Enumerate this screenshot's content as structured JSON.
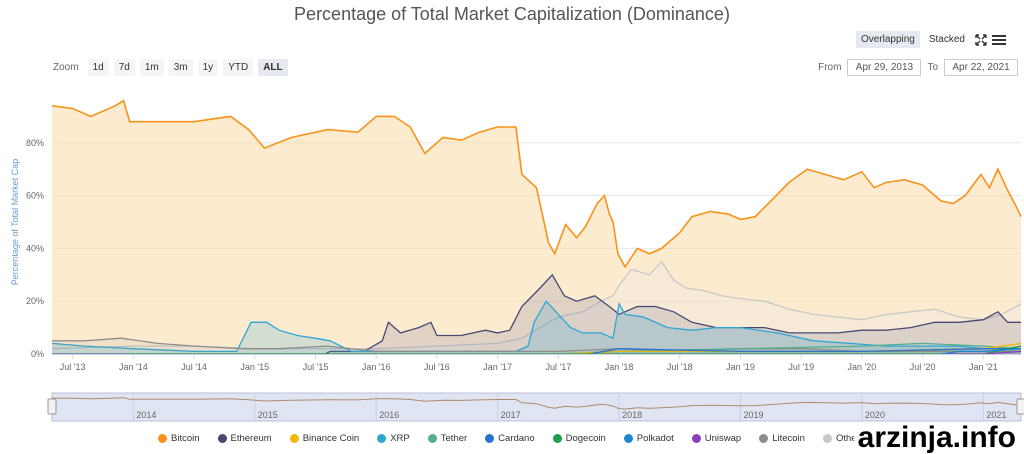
{
  "header": {
    "title": "Percentage of Total Market Capitalization (Dominance)"
  },
  "toolbar": {
    "overlapping_label": "Overlapping",
    "stacked_label": "Stacked",
    "active_view": "Overlapping",
    "fullscreen_icon": "expand-icon",
    "menu_icon": "hamburger-menu-icon"
  },
  "zoom": {
    "label": "Zoom",
    "options": [
      "1d",
      "7d",
      "1m",
      "3m",
      "1y",
      "YTD",
      "ALL"
    ],
    "active": "ALL"
  },
  "range": {
    "from_label": "From",
    "from_value": "Apr 29, 2013",
    "to_label": "To",
    "to_value": "Apr 22, 2021"
  },
  "watermark": "arzinja.info",
  "colors": {
    "plot_background": "#ffffff",
    "navigator_fill": "#dfe5f2"
  },
  "chart_data": {
    "type": "area",
    "title": "Percentage of Total Market Capitalization (Dominance)",
    "ylabel": "Percentage of Total Market Cap",
    "ylim": [
      0,
      100
    ],
    "yticks": [
      0,
      20,
      40,
      60,
      80
    ],
    "ytick_labels": [
      "0%",
      "20%",
      "40%",
      "60%",
      "80%"
    ],
    "x_start": 2013.33,
    "x_end": 2021.31,
    "xticks": [
      {
        "x": 2013.5,
        "label": "Jul '13"
      },
      {
        "x": 2014.0,
        "label": "Jan '14"
      },
      {
        "x": 2014.5,
        "label": "Jul '14"
      },
      {
        "x": 2015.0,
        "label": "Jan '15"
      },
      {
        "x": 2015.5,
        "label": "Jul '15"
      },
      {
        "x": 2016.0,
        "label": "Jan '16"
      },
      {
        "x": 2016.5,
        "label": "Jul '16"
      },
      {
        "x": 2017.0,
        "label": "Jan '17"
      },
      {
        "x": 2017.5,
        "label": "Jul '17"
      },
      {
        "x": 2018.0,
        "label": "Jan '18"
      },
      {
        "x": 2018.5,
        "label": "Jul '18"
      },
      {
        "x": 2019.0,
        "label": "Jan '19"
      },
      {
        "x": 2019.5,
        "label": "Jul '19"
      },
      {
        "x": 2020.0,
        "label": "Jan '20"
      },
      {
        "x": 2020.5,
        "label": "Jul '20"
      },
      {
        "x": 2021.0,
        "label": "Jan '21"
      }
    ],
    "navigator_years": [
      {
        "x": 2014.0,
        "label": "2014"
      },
      {
        "x": 2015.0,
        "label": "2015"
      },
      {
        "x": 2016.0,
        "label": "2016"
      },
      {
        "x": 2017.0,
        "label": "2017"
      },
      {
        "x": 2018.0,
        "label": "2018"
      },
      {
        "x": 2019.0,
        "label": "2019"
      },
      {
        "x": 2020.0,
        "label": "2020"
      },
      {
        "x": 2021.0,
        "label": "2021"
      }
    ],
    "grid": true,
    "legend_position": "bottom",
    "series": [
      {
        "name": "Bitcoin",
        "color": "#f7931a",
        "fill": "rgba(252,218,170,0.55)",
        "points": [
          [
            2013.33,
            94
          ],
          [
            2013.5,
            93
          ],
          [
            2013.65,
            90
          ],
          [
            2013.85,
            94
          ],
          [
            2013.92,
            96
          ],
          [
            2013.97,
            88
          ],
          [
            2014.2,
            88
          ],
          [
            2014.5,
            88
          ],
          [
            2014.8,
            90
          ],
          [
            2014.95,
            85
          ],
          [
            2015.08,
            78
          ],
          [
            2015.3,
            82
          ],
          [
            2015.6,
            85
          ],
          [
            2015.85,
            84
          ],
          [
            2016.0,
            90
          ],
          [
            2016.15,
            90
          ],
          [
            2016.28,
            86
          ],
          [
            2016.4,
            76
          ],
          [
            2016.55,
            82
          ],
          [
            2016.7,
            81
          ],
          [
            2016.85,
            84
          ],
          [
            2017.0,
            86
          ],
          [
            2017.15,
            86
          ],
          [
            2017.2,
            68
          ],
          [
            2017.32,
            63
          ],
          [
            2017.42,
            42
          ],
          [
            2017.47,
            38
          ],
          [
            2017.56,
            49
          ],
          [
            2017.65,
            44
          ],
          [
            2017.72,
            48
          ],
          [
            2017.82,
            57
          ],
          [
            2017.88,
            60
          ],
          [
            2017.92,
            53
          ],
          [
            2017.95,
            50
          ],
          [
            2017.99,
            38
          ],
          [
            2018.05,
            33
          ],
          [
            2018.15,
            40
          ],
          [
            2018.25,
            38
          ],
          [
            2018.35,
            40
          ],
          [
            2018.5,
            46
          ],
          [
            2018.6,
            52
          ],
          [
            2018.75,
            54
          ],
          [
            2018.9,
            53
          ],
          [
            2019.0,
            51
          ],
          [
            2019.12,
            52
          ],
          [
            2019.25,
            58
          ],
          [
            2019.4,
            65
          ],
          [
            2019.55,
            70
          ],
          [
            2019.7,
            68
          ],
          [
            2019.85,
            66
          ],
          [
            2020.0,
            69
          ],
          [
            2020.1,
            63
          ],
          [
            2020.2,
            65
          ],
          [
            2020.35,
            66
          ],
          [
            2020.5,
            64
          ],
          [
            2020.65,
            58
          ],
          [
            2020.75,
            57
          ],
          [
            2020.85,
            60
          ],
          [
            2020.98,
            68
          ],
          [
            2021.05,
            63
          ],
          [
            2021.12,
            70
          ],
          [
            2021.2,
            62
          ],
          [
            2021.27,
            56
          ],
          [
            2021.31,
            52
          ]
        ]
      },
      {
        "name": "Ethereum",
        "color": "#454a75",
        "fill": "rgba(108,112,150,0.20)",
        "points": [
          [
            2013.33,
            0
          ],
          [
            2015.58,
            0
          ],
          [
            2015.62,
            1
          ],
          [
            2015.9,
            1
          ],
          [
            2016.05,
            5
          ],
          [
            2016.1,
            12
          ],
          [
            2016.2,
            8
          ],
          [
            2016.35,
            10
          ],
          [
            2016.45,
            12
          ],
          [
            2016.5,
            7
          ],
          [
            2016.7,
            7
          ],
          [
            2016.9,
            9
          ],
          [
            2017.0,
            8
          ],
          [
            2017.1,
            9
          ],
          [
            2017.2,
            18
          ],
          [
            2017.35,
            25
          ],
          [
            2017.45,
            30
          ],
          [
            2017.55,
            22
          ],
          [
            2017.65,
            20
          ],
          [
            2017.8,
            22
          ],
          [
            2017.92,
            18
          ],
          [
            2018.0,
            15
          ],
          [
            2018.15,
            18
          ],
          [
            2018.3,
            18
          ],
          [
            2018.45,
            16
          ],
          [
            2018.6,
            12
          ],
          [
            2018.8,
            10
          ],
          [
            2019.0,
            10
          ],
          [
            2019.2,
            10
          ],
          [
            2019.4,
            8
          ],
          [
            2019.6,
            8
          ],
          [
            2019.8,
            8
          ],
          [
            2020.0,
            9
          ],
          [
            2020.2,
            9
          ],
          [
            2020.4,
            10
          ],
          [
            2020.6,
            12
          ],
          [
            2020.8,
            12
          ],
          [
            2021.0,
            13
          ],
          [
            2021.12,
            16
          ],
          [
            2021.2,
            12
          ],
          [
            2021.31,
            12
          ]
        ]
      },
      {
        "name": "XRP",
        "color": "#2ea6d3",
        "fill": "rgba(46,166,211,0.20)",
        "points": [
          [
            2013.33,
            4
          ],
          [
            2013.6,
            3
          ],
          [
            2014.0,
            2
          ],
          [
            2014.5,
            1
          ],
          [
            2014.85,
            1
          ],
          [
            2014.97,
            12
          ],
          [
            2015.1,
            12
          ],
          [
            2015.2,
            9
          ],
          [
            2015.35,
            7
          ],
          [
            2015.5,
            6
          ],
          [
            2015.62,
            5
          ],
          [
            2015.8,
            1
          ],
          [
            2016.0,
            1
          ],
          [
            2016.5,
            1
          ],
          [
            2017.0,
            1
          ],
          [
            2017.15,
            1
          ],
          [
            2017.25,
            3
          ],
          [
            2017.3,
            12
          ],
          [
            2017.4,
            20
          ],
          [
            2017.5,
            15
          ],
          [
            2017.6,
            10
          ],
          [
            2017.7,
            8
          ],
          [
            2017.85,
            8
          ],
          [
            2017.95,
            6
          ],
          [
            2018.0,
            19
          ],
          [
            2018.05,
            15
          ],
          [
            2018.2,
            14
          ],
          [
            2018.4,
            10
          ],
          [
            2018.6,
            9
          ],
          [
            2018.8,
            10
          ],
          [
            2019.0,
            10
          ],
          [
            2019.3,
            8
          ],
          [
            2019.6,
            5
          ],
          [
            2019.9,
            4
          ],
          [
            2020.2,
            3
          ],
          [
            2020.5,
            3
          ],
          [
            2020.8,
            3
          ],
          [
            2021.0,
            2
          ],
          [
            2021.2,
            2
          ],
          [
            2021.31,
            2
          ]
        ]
      },
      {
        "name": "Litecoin",
        "color": "#8d8d8d",
        "fill": "rgba(141,141,141,0.10)",
        "points": [
          [
            2013.33,
            5
          ],
          [
            2013.6,
            5
          ],
          [
            2013.9,
            6
          ],
          [
            2014.2,
            4
          ],
          [
            2014.5,
            3
          ],
          [
            2014.9,
            2
          ],
          [
            2015.2,
            2
          ],
          [
            2015.6,
            3
          ],
          [
            2016.0,
            1
          ],
          [
            2016.5,
            1
          ],
          [
            2017.0,
            1
          ],
          [
            2017.5,
            1
          ],
          [
            2018.0,
            2
          ],
          [
            2018.5,
            1
          ],
          [
            2019.0,
            2
          ],
          [
            2019.5,
            2
          ],
          [
            2020.0,
            1
          ],
          [
            2020.5,
            1
          ],
          [
            2021.0,
            1
          ],
          [
            2021.31,
            1
          ]
        ]
      },
      {
        "name": "Others",
        "color": "#c8c8c8",
        "fill": "rgba(230,230,230,0.25)",
        "points": [
          [
            2013.33,
            2
          ],
          [
            2014.0,
            3
          ],
          [
            2014.5,
            3
          ],
          [
            2015.0,
            2
          ],
          [
            2015.5,
            2
          ],
          [
            2016.0,
            2
          ],
          [
            2016.5,
            3
          ],
          [
            2017.0,
            4
          ],
          [
            2017.2,
            6
          ],
          [
            2017.35,
            10
          ],
          [
            2017.5,
            14
          ],
          [
            2017.7,
            16
          ],
          [
            2017.85,
            20
          ],
          [
            2017.95,
            22
          ],
          [
            2018.0,
            26
          ],
          [
            2018.1,
            32
          ],
          [
            2018.25,
            30
          ],
          [
            2018.35,
            35
          ],
          [
            2018.45,
            28
          ],
          [
            2018.55,
            25
          ],
          [
            2018.7,
            24
          ],
          [
            2018.85,
            22
          ],
          [
            2019.0,
            21
          ],
          [
            2019.2,
            20
          ],
          [
            2019.4,
            17
          ],
          [
            2019.6,
            15
          ],
          [
            2019.8,
            14
          ],
          [
            2020.0,
            13
          ],
          [
            2020.2,
            15
          ],
          [
            2020.4,
            16
          ],
          [
            2020.6,
            17
          ],
          [
            2020.8,
            14
          ],
          [
            2021.0,
            13
          ],
          [
            2021.15,
            15
          ],
          [
            2021.31,
            19
          ]
        ]
      },
      {
        "name": "Binance Coin",
        "color": "#f0b90b",
        "fill": "rgba(240,185,11,0.10)",
        "points": [
          [
            2017.55,
            0
          ],
          [
            2018.0,
            1
          ],
          [
            2019.0,
            1
          ],
          [
            2020.0,
            1
          ],
          [
            2021.0,
            2
          ],
          [
            2021.31,
            4
          ]
        ]
      },
      {
        "name": "Tether",
        "color": "#53ae94",
        "fill": "rgba(83,174,148,0.10)",
        "points": [
          [
            2015.5,
            0
          ],
          [
            2017.5,
            0
          ],
          [
            2018.0,
            1
          ],
          [
            2019.0,
            2
          ],
          [
            2020.0,
            3
          ],
          [
            2020.5,
            4
          ],
          [
            2021.0,
            3
          ],
          [
            2021.31,
            2
          ]
        ]
      },
      {
        "name": "Cardano",
        "color": "#2a71d0",
        "fill": "rgba(42,113,208,0.08)",
        "points": [
          [
            2017.75,
            0
          ],
          [
            2018.0,
            2
          ],
          [
            2019.0,
            1
          ],
          [
            2020.0,
            1
          ],
          [
            2021.0,
            2
          ],
          [
            2021.31,
            2
          ]
        ]
      },
      {
        "name": "Dogecoin",
        "color": "#1e9e4a",
        "fill": "rgba(30,158,74,0.05)",
        "points": [
          [
            2013.95,
            0
          ],
          [
            2015.0,
            0
          ],
          [
            2017.0,
            0
          ],
          [
            2019.0,
            0
          ],
          [
            2021.0,
            0
          ],
          [
            2021.31,
            3
          ]
        ]
      },
      {
        "name": "Polkadot",
        "color": "#1f86d1",
        "fill": "rgba(31,134,209,0.05)",
        "points": [
          [
            2020.65,
            0
          ],
          [
            2020.8,
            1
          ],
          [
            2021.0,
            1
          ],
          [
            2021.31,
            2
          ]
        ]
      },
      {
        "name": "Uniswap",
        "color": "#8b3fbf",
        "fill": "rgba(139,63,191,0.05)",
        "points": [
          [
            2020.7,
            0
          ],
          [
            2021.0,
            0
          ],
          [
            2021.31,
            1
          ]
        ]
      }
    ],
    "legend": [
      "Bitcoin",
      "Ethereum",
      "Binance Coin",
      "XRP",
      "Tether",
      "Cardano",
      "Dogecoin",
      "Polkadot",
      "Uniswap",
      "Litecoin",
      "Others"
    ]
  }
}
